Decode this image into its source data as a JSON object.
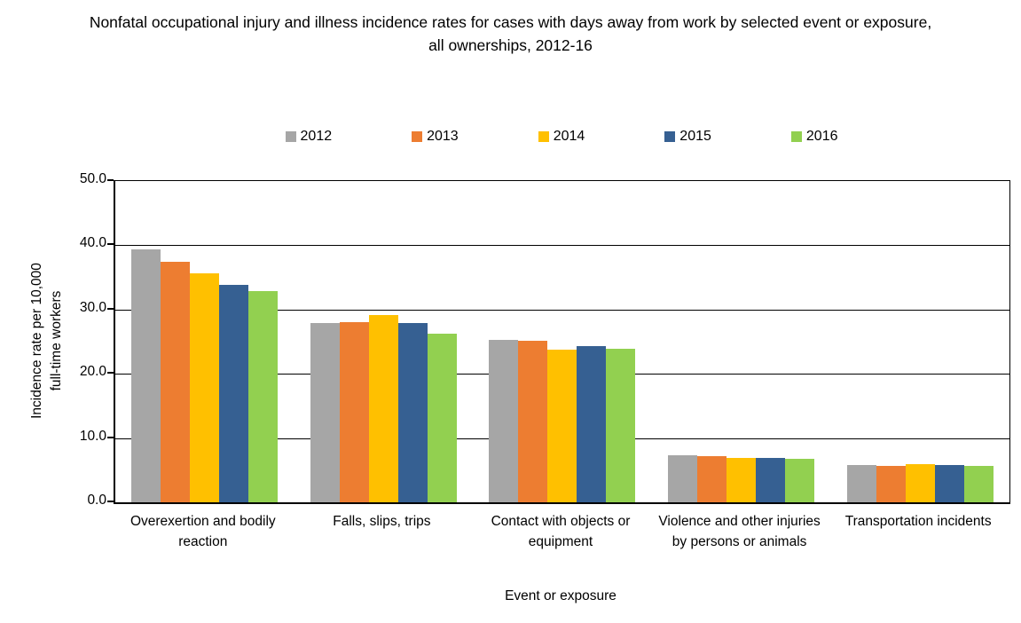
{
  "chart_data": {
    "type": "bar",
    "title": "Nonfatal occupational injury and illness incidence rates for cases with days away from work by selected event or exposure, all ownerships, 2012-16",
    "xlabel": "Event or exposure",
    "ylabel": "Incidence rate per 10,000 full-time workers",
    "ylabel_lines": [
      "Incidence rate per 10,000",
      "full-time workers"
    ],
    "categories": [
      "Overexertion and bodily reaction",
      "Falls, slips, trips",
      "Contact with objects or equipment",
      "Violence and other injuries by persons or animals",
      "Transportation incidents"
    ],
    "series": [
      {
        "name": "2012",
        "color": "#A6A6A6",
        "values": [
          39.3,
          27.9,
          25.3,
          7.3,
          5.8
        ]
      },
      {
        "name": "2013",
        "color": "#ED7D31",
        "values": [
          37.5,
          28.0,
          25.2,
          7.2,
          5.7
        ]
      },
      {
        "name": "2014",
        "color": "#FFC000",
        "values": [
          35.6,
          29.2,
          23.8,
          6.9,
          6.0
        ]
      },
      {
        "name": "2015",
        "color": "#366092",
        "values": [
          33.9,
          27.9,
          24.3,
          6.9,
          5.8
        ]
      },
      {
        "name": "2016",
        "color": "#92D050",
        "values": [
          32.9,
          26.2,
          23.9,
          6.8,
          5.7
        ]
      }
    ],
    "ylim": [
      0,
      50
    ],
    "ytick_step": 10,
    "ytick_labels": [
      "0.0",
      "10.0",
      "20.0",
      "30.0",
      "40.0",
      "50.0"
    ],
    "grid": true,
    "legend_position": "top",
    "axis_color": "#000000"
  }
}
